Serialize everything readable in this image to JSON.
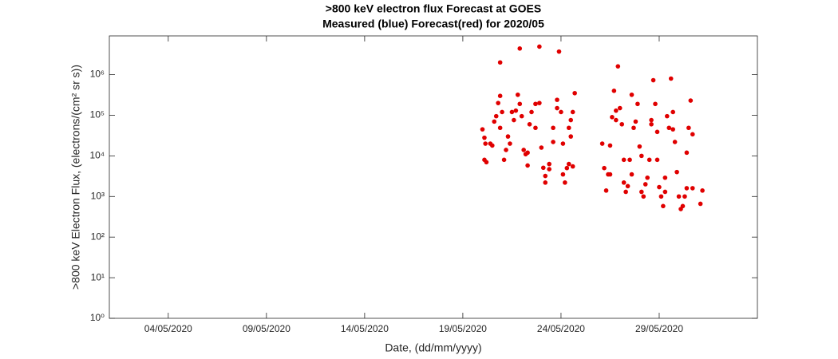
{
  "chart_data": {
    "type": "scatter",
    "log_y": true,
    "title": ">800 keV electron flux Forecast at GOES",
    "subtitle": "Measured (blue) Forecast(red) for 2020/05",
    "x_label": "Date, (dd/mm/yyyy)",
    "y_label": ">800 keV Electron Flux, (electrons/(cm² sr s))",
    "color": "#e00000",
    "xlim": [
      1,
      34
    ],
    "xticks": [
      {
        "value": 4,
        "label": "04/05/2020"
      },
      {
        "value": 9,
        "label": "09/05/2020"
      },
      {
        "value": 14,
        "label": "14/05/2020"
      },
      {
        "value": 19,
        "label": "19/05/2020"
      },
      {
        "value": 24,
        "label": "24/05/2020"
      },
      {
        "value": 29,
        "label": "29/05/2020"
      }
    ],
    "ylim": [
      1,
      9000000
    ],
    "yticks": [
      {
        "value": 1,
        "label": "10⁰"
      },
      {
        "value": 10,
        "label": "10¹"
      },
      {
        "value": 100,
        "label": "10²"
      },
      {
        "value": 1000,
        "label": "10³"
      },
      {
        "value": 10000,
        "label": "10⁴"
      },
      {
        "value": 100000,
        "label": "10⁵"
      },
      {
        "value": 1000000,
        "label": "10⁶"
      }
    ],
    "x": [
      20.0,
      20.1,
      20.1,
      20.2,
      20.15,
      20.4,
      20.5,
      20.6,
      20.7,
      20.8,
      20.9,
      20.9,
      21.0,
      20.9,
      21.1,
      21.2,
      21.3,
      21.4,
      21.5,
      21.6,
      21.7,
      21.8,
      21.9,
      21.9,
      22.0,
      22.1,
      22.2,
      22.3,
      22.3,
      22.4,
      22.5,
      22.7,
      22.7,
      22.9,
      22.9,
      23.0,
      23.1,
      23.2,
      23.2,
      23.4,
      23.4,
      23.6,
      23.6,
      23.8,
      23.8,
      23.9,
      24.0,
      24.1,
      24.1,
      24.2,
      24.3,
      24.4,
      24.4,
      24.5,
      24.6,
      24.7,
      24.5,
      24.6,
      26.1,
      26.2,
      26.3,
      26.4,
      26.5,
      26.5,
      26.6,
      26.7,
      26.8,
      26.8,
      26.9,
      27.0,
      27.1,
      27.2,
      27.2,
      27.3,
      27.4,
      27.5,
      27.6,
      27.6,
      27.7,
      27.8,
      27.9,
      28.0,
      28.1,
      28.1,
      28.2,
      28.3,
      28.4,
      28.5,
      28.6,
      28.6,
      28.7,
      28.8,
      28.9,
      28.9,
      29.0,
      29.1,
      29.2,
      29.3,
      29.3,
      29.4,
      29.5,
      29.6,
      29.7,
      29.7,
      29.8,
      29.9,
      30.0,
      30.1,
      30.2,
      30.3,
      30.4,
      30.4,
      30.5,
      30.6,
      30.7,
      30.7,
      31.2,
      31.1
    ],
    "values": [
      45000,
      28000,
      8000,
      7000,
      20000,
      20000,
      18000,
      70000,
      95000,
      200000,
      300000,
      2000000,
      120000,
      49000,
      8000,
      14000,
      30000,
      20000,
      120000,
      76000,
      130000,
      320000,
      4400000,
      190000,
      95000,
      14000,
      11000,
      5800,
      12000,
      60000,
      120000,
      190000,
      49000,
      4900000,
      200000,
      16000,
      5100,
      3200,
      2200,
      4700,
      6300,
      22000,
      49000,
      150000,
      240000,
      3700000,
      120000,
      20000,
      3500,
      2200,
      5000,
      6300,
      49000,
      76000,
      120000,
      350000,
      30000,
      5500,
      20000,
      5000,
      1400,
      3500,
      3500,
      18000,
      90000,
      400000,
      76000,
      130000,
      1600000,
      150000,
      60000,
      8000,
      2200,
      1300,
      1800,
      8000,
      3500,
      320000,
      49000,
      70000,
      190000,
      17000,
      10000,
      1300,
      1000,
      2000,
      2900,
      8000,
      60000,
      76000,
      730000,
      190000,
      39000,
      8000,
      1700,
      1000,
      580,
      1300,
      2900,
      95000,
      49000,
      800000,
      120000,
      45000,
      22000,
      4000,
      1000,
      490,
      580,
      1000,
      1600,
      12000,
      49000,
      230000,
      34000,
      1600,
      1400,
      660
    ]
  }
}
